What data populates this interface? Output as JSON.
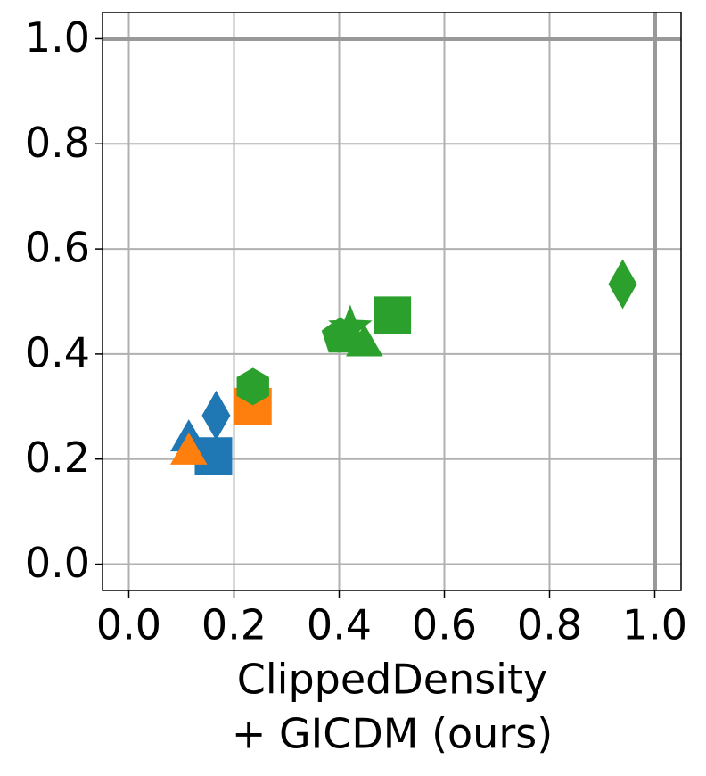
{
  "chart_data": {
    "type": "scatter",
    "xlabel": [
      "ClippedDensity",
      "+ GICDM (ours)"
    ],
    "xlim": [
      -0.05,
      1.05
    ],
    "ylim": [
      -0.05,
      1.05
    ],
    "xticks": [
      {
        "value": 0,
        "label": "0.0"
      },
      0.2,
      0.4,
      0.6,
      0.8,
      {
        "value": 1,
        "label": "1.0"
      }
    ],
    "yticks": [
      {
        "value": 0,
        "label": "0.0"
      },
      0.2,
      0.4,
      0.6,
      0.8,
      {
        "value": 1,
        "label": "1.0"
      }
    ],
    "grid": true,
    "hlines": [
      1
    ],
    "vlines": [
      1
    ],
    "series": [
      {
        "color": "#1f77b4",
        "markers": [
          "triangle",
          "square",
          "diamond"
        ],
        "x": [
          0.114,
          0.161,
          0.166
        ],
        "values": [
          0.235,
          0.206,
          0.283
        ]
      },
      {
        "color": "#ff7f0e",
        "markers": [
          "triangle",
          "square"
        ],
        "x": [
          0.114,
          0.236
        ],
        "values": [
          0.21,
          0.3
        ]
      },
      {
        "color": "#2ca02c",
        "markers": [
          "hexagon",
          "pentagon",
          "star",
          "triangle",
          "square",
          "diamond"
        ],
        "x": [
          0.236,
          0.402,
          0.421,
          0.448,
          0.501,
          0.939
        ],
        "values": [
          0.338,
          0.433,
          0.45,
          0.416,
          0.474,
          0.533
        ]
      }
    ]
  }
}
